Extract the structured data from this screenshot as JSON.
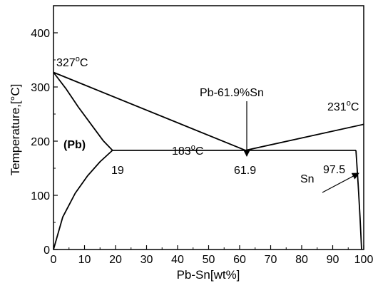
{
  "chart_data": {
    "type": "line",
    "title": "",
    "xlabel": "Pb-Sn[wt%]",
    "ylabel": "Temperature,[°C]",
    "xlim": [
      0,
      100
    ],
    "ylim": [
      0,
      450
    ],
    "x_ticks": [
      "0",
      "10",
      "20",
      "30",
      "40",
      "50",
      "60",
      "70",
      "80",
      "90",
      "100"
    ],
    "y_ticks": [
      "0",
      "100",
      "200",
      "300",
      "400"
    ],
    "grid": false,
    "legend": "none",
    "series": [
      {
        "points": [
          [
            0,
            327
          ],
          [
            61.9,
            183
          ]
        ]
      },
      {
        "points": [
          [
            61.9,
            183
          ],
          [
            100,
            231
          ]
        ]
      },
      {
        "points": [
          [
            19,
            183
          ],
          [
            97.5,
            183
          ]
        ]
      },
      {
        "points": [
          [
            0,
            327
          ],
          [
            4,
            297
          ],
          [
            8,
            263
          ],
          [
            12,
            232
          ],
          [
            16,
            201
          ],
          [
            19,
            183
          ]
        ]
      },
      {
        "points": [
          [
            19,
            183
          ],
          [
            15,
            162
          ],
          [
            11,
            136
          ],
          [
            7,
            104
          ],
          [
            3,
            60
          ],
          [
            0,
            0
          ]
        ]
      },
      {
        "points": [
          [
            97.5,
            183
          ],
          [
            98.2,
            120
          ],
          [
            98.8,
            60
          ],
          [
            99.3,
            0
          ]
        ]
      }
    ],
    "annotations": {
      "pb_melt": {
        "text": "327",
        "sup": "o",
        "unit": "C"
      },
      "sn_melt": {
        "text": "231",
        "sup": "o",
        "unit": "C"
      },
      "eutectic_temp": {
        "text": "183",
        "sup": "o",
        "unit": "C"
      },
      "eutectic_comp": "Pb-61.9%Sn",
      "alpha_phase": "(Pb)",
      "beta_phase": "Sn",
      "pb_limit": "19",
      "eutectic_x": "61.9",
      "sn_limit": "97.5"
    }
  }
}
